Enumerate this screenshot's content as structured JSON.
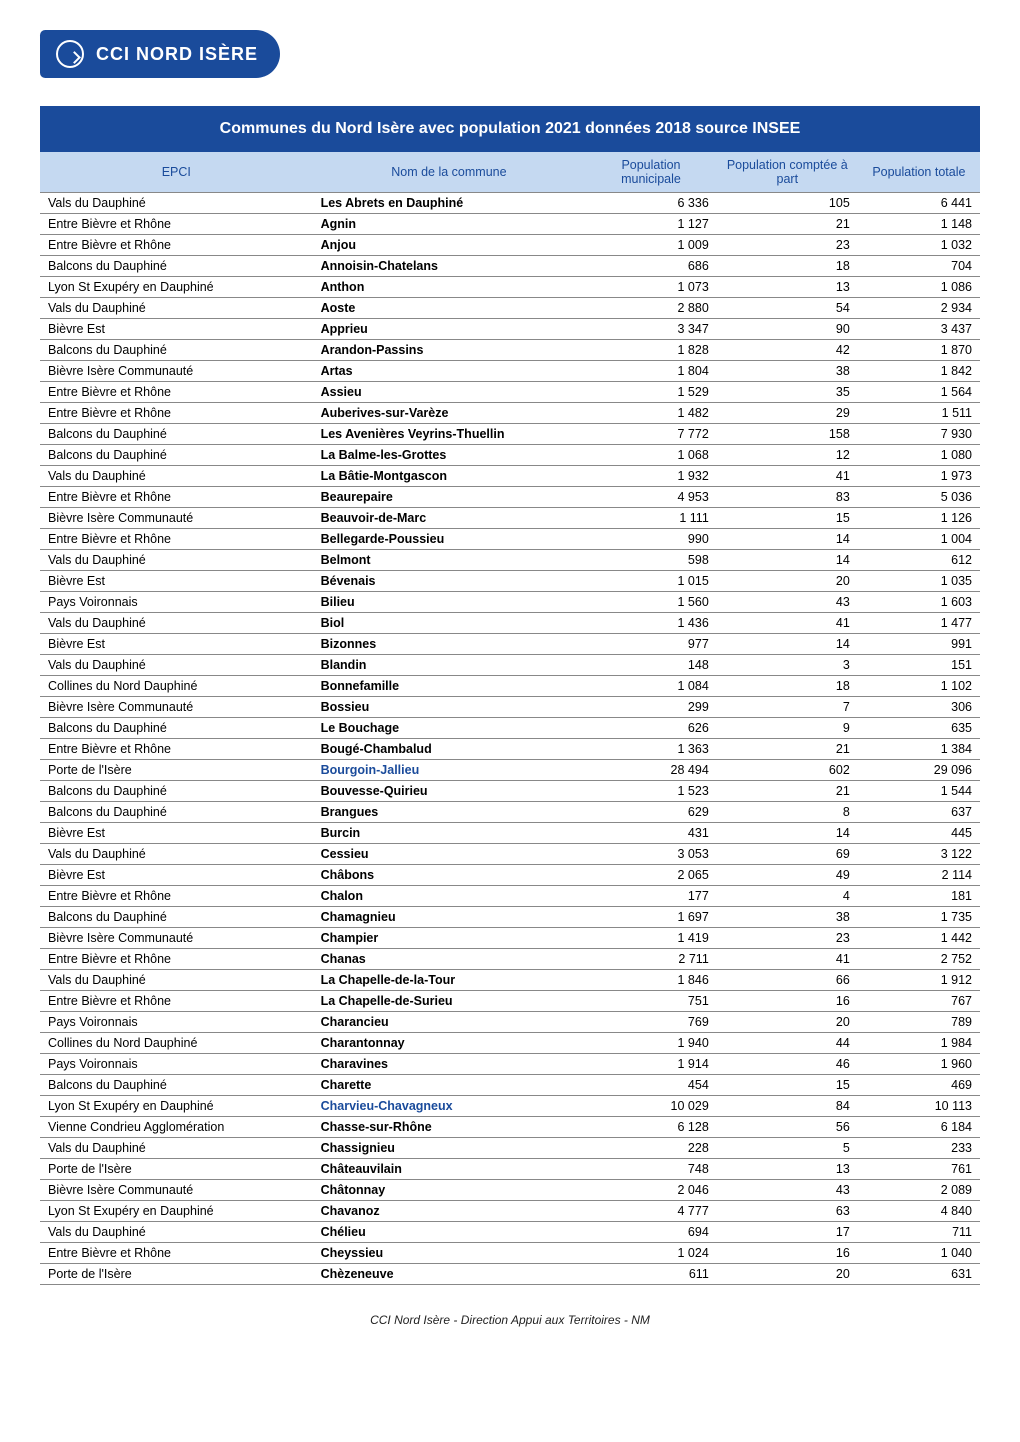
{
  "logo_text": "CCI NORD ISÈRE",
  "title": "Communes du Nord Isère avec population 2021 données 2018 source INSEE",
  "columns": [
    "EPCI",
    "Nom de la commune",
    "Population municipale",
    "Population comptée à part",
    "Population totale"
  ],
  "linked_communes": [
    "Bourgoin-Jallieu",
    "Charvieu-Chavagneux"
  ],
  "rows": [
    [
      "Vals du Dauphiné",
      "Les Abrets en Dauphiné",
      "6 336",
      "105",
      "6 441"
    ],
    [
      "Entre Bièvre et Rhône",
      "Agnin",
      "1 127",
      "21",
      "1 148"
    ],
    [
      "Entre Bièvre et Rhône",
      "Anjou",
      "1 009",
      "23",
      "1 032"
    ],
    [
      "Balcons du Dauphiné",
      "Annoisin-Chatelans",
      "686",
      "18",
      "704"
    ],
    [
      "Lyon St Exupéry en Dauphiné",
      "Anthon",
      "1 073",
      "13",
      "1 086"
    ],
    [
      "Vals du Dauphiné",
      "Aoste",
      "2 880",
      "54",
      "2 934"
    ],
    [
      "Bièvre Est",
      "Apprieu",
      "3 347",
      "90",
      "3 437"
    ],
    [
      "Balcons du Dauphiné",
      "Arandon-Passins",
      "1 828",
      "42",
      "1 870"
    ],
    [
      "Bièvre Isère Communauté",
      "Artas",
      "1 804",
      "38",
      "1 842"
    ],
    [
      "Entre Bièvre et Rhône",
      "Assieu",
      "1 529",
      "35",
      "1 564"
    ],
    [
      "Entre Bièvre et Rhône",
      "Auberives-sur-Varèze",
      "1 482",
      "29",
      "1 511"
    ],
    [
      "Balcons du Dauphiné",
      "Les Avenières Veyrins-Thuellin",
      "7 772",
      "158",
      "7 930"
    ],
    [
      "Balcons du Dauphiné",
      "La Balme-les-Grottes",
      "1 068",
      "12",
      "1 080"
    ],
    [
      "Vals du Dauphiné",
      "La Bâtie-Montgascon",
      "1 932",
      "41",
      "1 973"
    ],
    [
      "Entre Bièvre et Rhône",
      "Beaurepaire",
      "4 953",
      "83",
      "5 036"
    ],
    [
      "Bièvre Isère Communauté",
      "Beauvoir-de-Marc",
      "1 111",
      "15",
      "1 126"
    ],
    [
      "Entre Bièvre et Rhône",
      "Bellegarde-Poussieu",
      "990",
      "14",
      "1 004"
    ],
    [
      "Vals du Dauphiné",
      "Belmont",
      "598",
      "14",
      "612"
    ],
    [
      "Bièvre Est",
      "Bévenais",
      "1 015",
      "20",
      "1 035"
    ],
    [
      "Pays Voironnais",
      "Bilieu",
      "1 560",
      "43",
      "1 603"
    ],
    [
      "Vals du Dauphiné",
      "Biol",
      "1 436",
      "41",
      "1 477"
    ],
    [
      "Bièvre Est",
      "Bizonnes",
      "977",
      "14",
      "991"
    ],
    [
      "Vals du Dauphiné",
      "Blandin",
      "148",
      "3",
      "151"
    ],
    [
      "Collines du Nord Dauphiné",
      "Bonnefamille",
      "1 084",
      "18",
      "1 102"
    ],
    [
      "Bièvre Isère Communauté",
      "Bossieu",
      "299",
      "7",
      "306"
    ],
    [
      "Balcons du Dauphiné",
      "Le Bouchage",
      "626",
      "9",
      "635"
    ],
    [
      "Entre Bièvre et Rhône",
      "Bougé-Chambalud",
      "1 363",
      "21",
      "1 384"
    ],
    [
      "Porte de l'Isère",
      "Bourgoin-Jallieu",
      "28 494",
      "602",
      "29 096"
    ],
    [
      "Balcons du Dauphiné",
      "Bouvesse-Quirieu",
      "1 523",
      "21",
      "1 544"
    ],
    [
      "Balcons du Dauphiné",
      "Brangues",
      "629",
      "8",
      "637"
    ],
    [
      "Bièvre Est",
      "Burcin",
      "431",
      "14",
      "445"
    ],
    [
      "Vals du Dauphiné",
      "Cessieu",
      "3 053",
      "69",
      "3 122"
    ],
    [
      "Bièvre Est",
      "Châbons",
      "2 065",
      "49",
      "2 114"
    ],
    [
      "Entre Bièvre et Rhône",
      "Chalon",
      "177",
      "4",
      "181"
    ],
    [
      "Balcons du Dauphiné",
      "Chamagnieu",
      "1 697",
      "38",
      "1 735"
    ],
    [
      "Bièvre Isère Communauté",
      "Champier",
      "1 419",
      "23",
      "1 442"
    ],
    [
      "Entre Bièvre et Rhône",
      "Chanas",
      "2 711",
      "41",
      "2 752"
    ],
    [
      "Vals du Dauphiné",
      "La Chapelle-de-la-Tour",
      "1 846",
      "66",
      "1 912"
    ],
    [
      "Entre Bièvre et Rhône",
      "La Chapelle-de-Surieu",
      "751",
      "16",
      "767"
    ],
    [
      "Pays Voironnais",
      "Charancieu",
      "769",
      "20",
      "789"
    ],
    [
      "Collines du Nord Dauphiné",
      "Charantonnay",
      "1 940",
      "44",
      "1 984"
    ],
    [
      "Pays Voironnais",
      "Charavines",
      "1 914",
      "46",
      "1 960"
    ],
    [
      "Balcons du Dauphiné",
      "Charette",
      "454",
      "15",
      "469"
    ],
    [
      "Lyon St Exupéry en Dauphiné",
      "Charvieu-Chavagneux",
      "10 029",
      "84",
      "10 113"
    ],
    [
      "Vienne Condrieu Agglomération",
      "Chasse-sur-Rhône",
      "6 128",
      "56",
      "6 184"
    ],
    [
      "Vals du Dauphiné",
      "Chassignieu",
      "228",
      "5",
      "233"
    ],
    [
      "Porte de l'Isère",
      "Châteauvilain",
      "748",
      "13",
      "761"
    ],
    [
      "Bièvre Isère Communauté",
      "Châtonnay",
      "2 046",
      "43",
      "2 089"
    ],
    [
      "Lyon St Exupéry en Dauphiné",
      "Chavanoz",
      "4 777",
      "63",
      "4 840"
    ],
    [
      "Vals du Dauphiné",
      "Chélieu",
      "694",
      "17",
      "711"
    ],
    [
      "Entre Bièvre et Rhône",
      "Cheyssieu",
      "1 024",
      "16",
      "1 040"
    ],
    [
      "Porte de l'Isère",
      "Chèzeneuve",
      "611",
      "20",
      "631"
    ]
  ],
  "footer": "CCI Nord Isère - Direction Appui aux Territoires - NM"
}
